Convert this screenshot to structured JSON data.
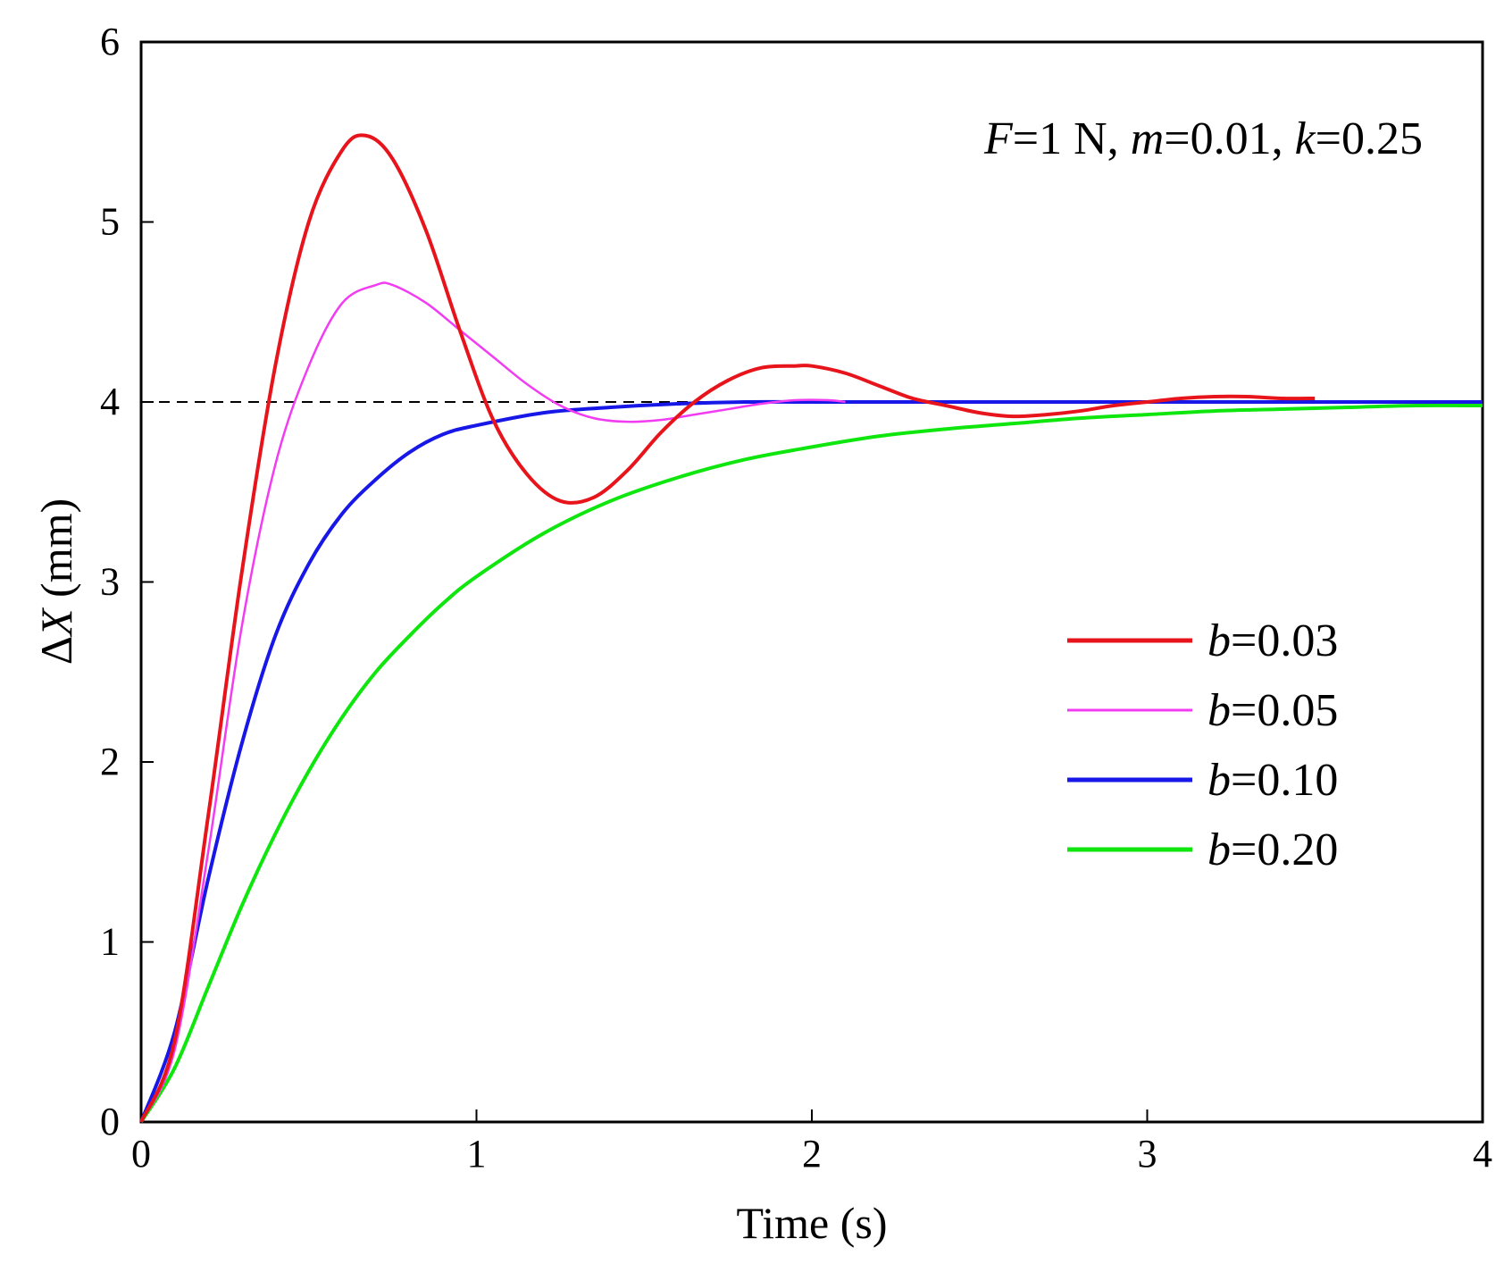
{
  "chart_data": {
    "type": "line",
    "title": "",
    "xlabel": "Time (s)",
    "ylabel": {
      "prefix": "Δ",
      "var": "X",
      "suffix": " (mm)"
    },
    "xlim": [
      0,
      4
    ],
    "ylim": [
      0,
      6
    ],
    "xticks": [
      "0",
      "1",
      "2",
      "3",
      "4"
    ],
    "yticks": [
      "0",
      "1",
      "2",
      "3",
      "4",
      "5",
      "6"
    ],
    "grid": false,
    "legend_position": "center-right",
    "annotation": {
      "parts": [
        {
          "text": "F",
          "italic": true
        },
        {
          "text": "=1 N, ",
          "italic": false
        },
        {
          "text": "m",
          "italic": true
        },
        {
          "text": "=0.01, ",
          "italic": false
        },
        {
          "text": "k",
          "italic": true
        },
        {
          "text": "=0.25",
          "italic": false
        }
      ]
    },
    "reference_line": {
      "y": 4,
      "style": "dashed",
      "color": "#000000"
    },
    "series": [
      {
        "name": "b=0.03",
        "var": "b",
        "value_text": "=0.03",
        "color": "#e8141b",
        "x": [
          0,
          0.1,
          0.2,
          0.3,
          0.4,
          0.5,
          0.6,
          0.67,
          0.75,
          0.85,
          0.95,
          1.05,
          1.15,
          1.25,
          1.35,
          1.45,
          1.55,
          1.65,
          1.75,
          1.85,
          1.95,
          2.0,
          2.1,
          2.2,
          2.3,
          2.4,
          2.5,
          2.6,
          2.7,
          2.8,
          2.9,
          3.0,
          3.1,
          3.2,
          3.3,
          3.4,
          3.5
        ],
        "values": [
          0,
          0.45,
          1.7,
          3.05,
          4.2,
          5.0,
          5.4,
          5.48,
          5.35,
          4.95,
          4.4,
          3.9,
          3.6,
          3.45,
          3.47,
          3.62,
          3.83,
          4.0,
          4.12,
          4.19,
          4.2,
          4.2,
          4.16,
          4.09,
          4.02,
          3.98,
          3.94,
          3.92,
          3.93,
          3.95,
          3.98,
          4.0,
          4.02,
          4.03,
          4.03,
          4.02,
          4.02
        ]
      },
      {
        "name": "b=0.05",
        "var": "b",
        "value_text": "=0.05",
        "color": "#f23cf2",
        "x": [
          0,
          0.1,
          0.2,
          0.3,
          0.4,
          0.5,
          0.6,
          0.7,
          0.75,
          0.85,
          0.95,
          1.05,
          1.15,
          1.25,
          1.35,
          1.45,
          1.55,
          1.65,
          1.75,
          1.85,
          1.95,
          2.05,
          2.1
        ],
        "values": [
          0,
          0.4,
          1.5,
          2.75,
          3.65,
          4.2,
          4.55,
          4.65,
          4.65,
          4.55,
          4.4,
          4.25,
          4.1,
          3.98,
          3.91,
          3.89,
          3.9,
          3.93,
          3.96,
          3.99,
          4.01,
          4.01,
          4.0
        ]
      },
      {
        "name": "b=0.10",
        "var": "b",
        "value_text": "=0.10",
        "color": "#1717e8",
        "x": [
          0,
          0.1,
          0.2,
          0.3,
          0.4,
          0.5,
          0.6,
          0.7,
          0.8,
          0.9,
          1.0,
          1.2,
          1.4,
          1.6,
          1.8,
          2.0,
          2.5,
          3.0,
          3.5,
          4.0
        ],
        "values": [
          0,
          0.5,
          1.35,
          2.1,
          2.7,
          3.1,
          3.38,
          3.57,
          3.72,
          3.82,
          3.87,
          3.94,
          3.97,
          3.99,
          4.0,
          4.0,
          4.0,
          4.0,
          4.0,
          4.0
        ]
      },
      {
        "name": "b=0.20",
        "var": "b",
        "value_text": "=0.20",
        "color": "#0ee60e",
        "x": [
          0,
          0.1,
          0.2,
          0.3,
          0.4,
          0.5,
          0.6,
          0.7,
          0.8,
          0.9,
          1.0,
          1.2,
          1.4,
          1.6,
          1.8,
          2.0,
          2.2,
          2.4,
          2.6,
          2.8,
          3.0,
          3.2,
          3.4,
          3.6,
          3.8,
          4.0
        ],
        "values": [
          0,
          0.3,
          0.75,
          1.2,
          1.6,
          1.95,
          2.25,
          2.5,
          2.7,
          2.88,
          3.03,
          3.27,
          3.45,
          3.58,
          3.68,
          3.75,
          3.81,
          3.85,
          3.88,
          3.91,
          3.93,
          3.95,
          3.96,
          3.97,
          3.98,
          3.98
        ]
      }
    ]
  }
}
